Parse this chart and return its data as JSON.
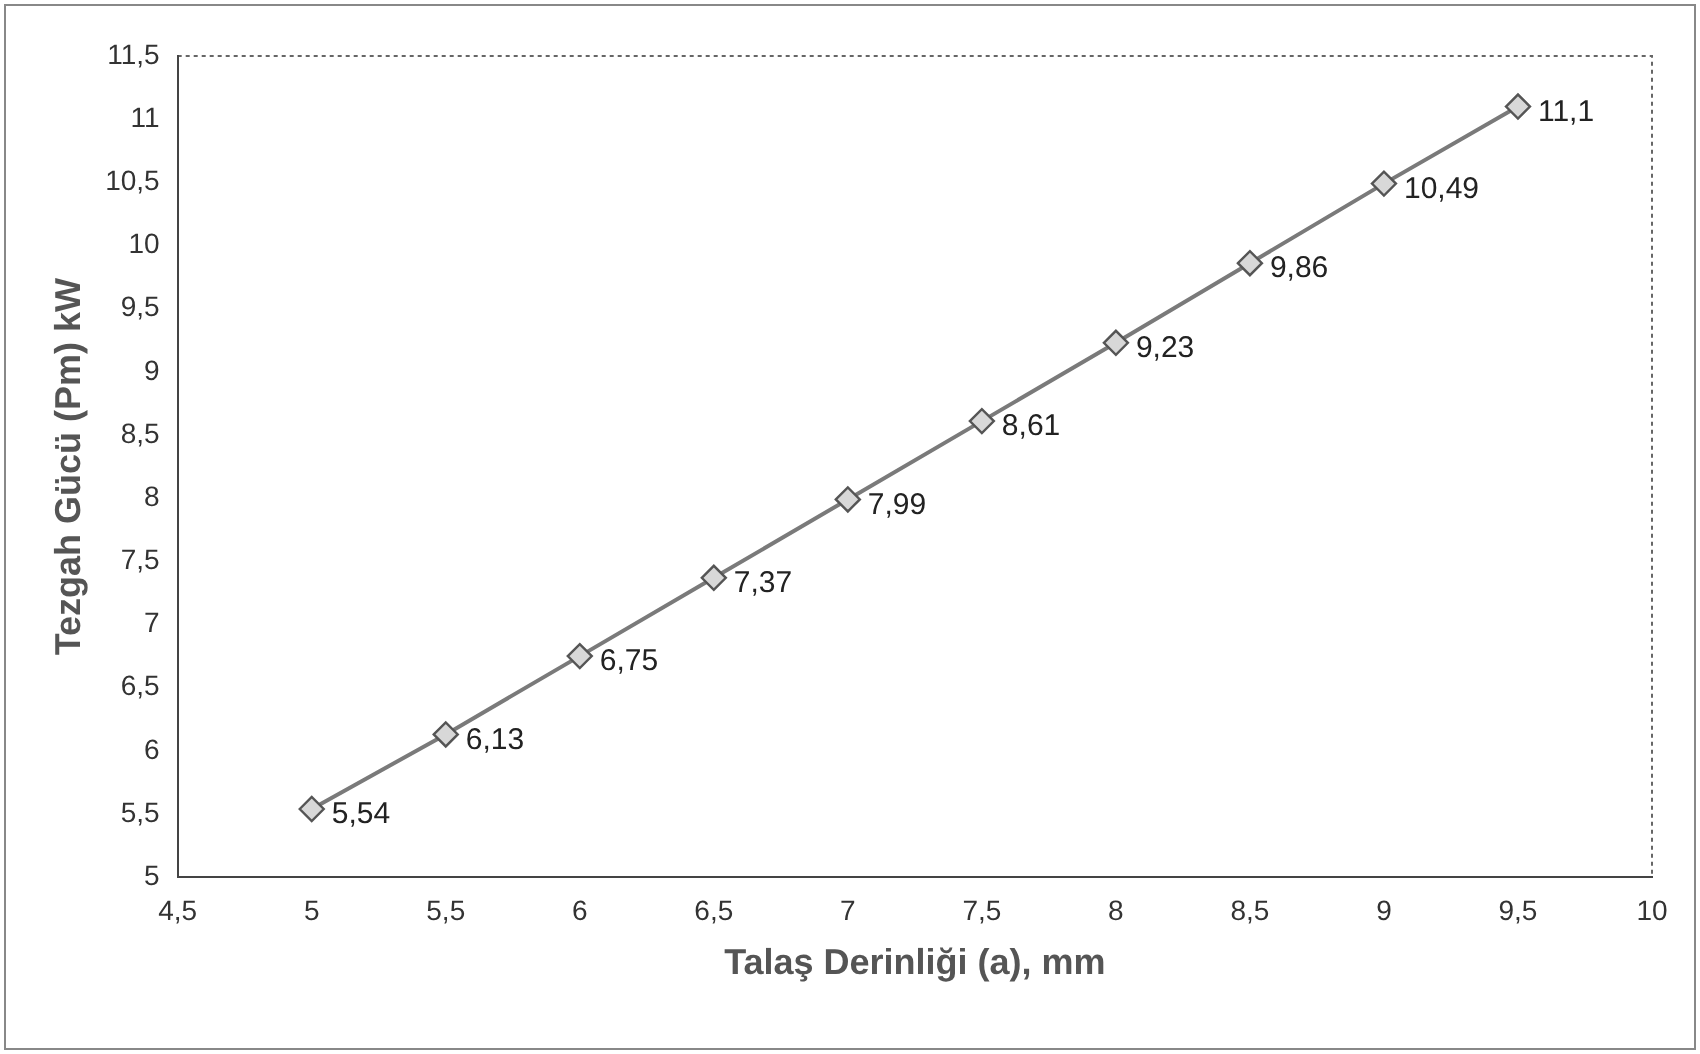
{
  "chart_data": {
    "type": "line",
    "xlabel": "Talaş Derinliği (a), mm",
    "ylabel": "Tezgah Gücü (Pm) kW",
    "x": [
      5,
      5.5,
      6,
      6.5,
      7,
      7.5,
      8,
      8.5,
      9,
      9.5
    ],
    "values": [
      5.54,
      6.13,
      6.75,
      7.37,
      7.99,
      8.61,
      9.23,
      9.86,
      10.49,
      11.1
    ],
    "value_labels": [
      "5,54",
      "6,13",
      "6,75",
      "7,37",
      "7,99",
      "8,61",
      "9,23",
      "9,86",
      "10,49",
      "11,1"
    ],
    "color": "#7a7a7a",
    "marker": "diamond",
    "line_style": "solid",
    "grid": false,
    "legend": false,
    "xlim": [
      4.5,
      10
    ],
    "xticks": [
      {
        "value": 4.5,
        "label": "4,5"
      },
      5,
      {
        "value": 5.5,
        "label": "5,5"
      },
      6,
      {
        "value": 6.5,
        "label": "6,5"
      },
      7,
      {
        "value": 7.5,
        "label": "7,5"
      },
      8,
      {
        "value": 8.5,
        "label": "8,5"
      },
      9,
      {
        "value": 9.5,
        "label": "9,5"
      },
      10
    ],
    "ylim": [
      5,
      11.5
    ],
    "yticks": [
      5,
      {
        "value": 5.5,
        "label": "5,5"
      },
      6,
      {
        "value": 6.5,
        "label": "6,5"
      },
      7,
      {
        "value": 7.5,
        "label": "7,5"
      },
      8,
      {
        "value": 8.5,
        "label": "8,5"
      },
      9,
      {
        "value": 9.5,
        "label": "9,5"
      },
      10,
      {
        "value": 10.5,
        "label": "10,5"
      },
      11,
      {
        "value": 11.5,
        "label": "11,5"
      }
    ]
  }
}
